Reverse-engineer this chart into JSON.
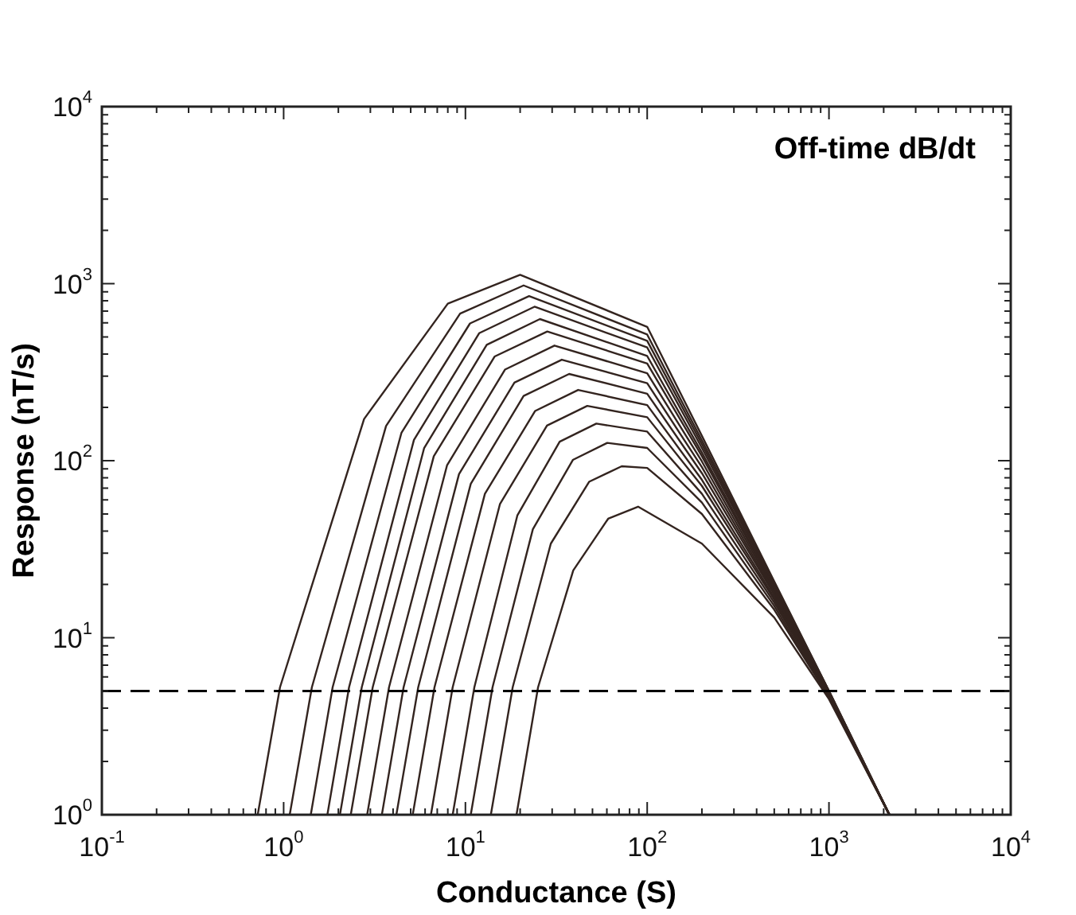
{
  "chart_data": {
    "type": "line",
    "xlabel": "Conductance (S)",
    "ylabel": "Response (nT/s)",
    "annotations": [
      "Off-time dB/dt"
    ],
    "log": "xy",
    "grid": false,
    "legend": false,
    "marker": "none",
    "line_style": "solid",
    "xlim": [
      0.1,
      10000
    ],
    "ylim": [
      1,
      10000
    ],
    "xticks": [
      {
        "value": 0.1,
        "label": "10$^{-1}$"
      },
      {
        "value": 0.2,
        "label": null
      },
      {
        "value": 0.3,
        "label": null
      },
      {
        "value": 0.4,
        "label": null
      },
      {
        "value": 0.5,
        "label": null
      },
      {
        "value": 0.6,
        "label": null
      },
      {
        "value": 0.7,
        "label": null
      },
      {
        "value": 0.8,
        "label": null
      },
      {
        "value": 0.9,
        "label": null
      },
      {
        "value": 1,
        "label": "10$^{0}$"
      },
      {
        "value": 2,
        "label": null
      },
      {
        "value": 3,
        "label": null
      },
      {
        "value": 4,
        "label": null
      },
      {
        "value": 5,
        "label": null
      },
      {
        "value": 6,
        "label": null
      },
      {
        "value": 7,
        "label": null
      },
      {
        "value": 8,
        "label": null
      },
      {
        "value": 9,
        "label": null
      },
      {
        "value": 10,
        "label": "10$^{1}$"
      },
      {
        "value": 20,
        "label": null
      },
      {
        "value": 30,
        "label": null
      },
      {
        "value": 40,
        "label": null
      },
      {
        "value": 50,
        "label": null
      },
      {
        "value": 60,
        "label": null
      },
      {
        "value": 70,
        "label": null
      },
      {
        "value": 80,
        "label": null
      },
      {
        "value": 90,
        "label": null
      },
      {
        "value": 100,
        "label": "10$^{2}$"
      },
      {
        "value": 200,
        "label": null
      },
      {
        "value": 300,
        "label": null
      },
      {
        "value": 400,
        "label": null
      },
      {
        "value": 500,
        "label": null
      },
      {
        "value": 600,
        "label": null
      },
      {
        "value": 700,
        "label": null
      },
      {
        "value": 800,
        "label": null
      },
      {
        "value": 900,
        "label": null
      },
      {
        "value": 1000,
        "label": "10$^{3}$"
      },
      {
        "value": 2000,
        "label": null
      },
      {
        "value": 3000,
        "label": null
      },
      {
        "value": 4000,
        "label": null
      },
      {
        "value": 5000,
        "label": null
      },
      {
        "value": 6000,
        "label": null
      },
      {
        "value": 7000,
        "label": null
      },
      {
        "value": 8000,
        "label": null
      },
      {
        "value": 9000,
        "label": null
      },
      {
        "value": 10000,
        "label": "10$^{4}$"
      }
    ],
    "yticks": [
      {
        "value": 1,
        "label": "10$^{0}$"
      },
      {
        "value": 2,
        "label": null
      },
      {
        "value": 3,
        "label": null
      },
      {
        "value": 4,
        "label": null
      },
      {
        "value": 5,
        "label": null
      },
      {
        "value": 6,
        "label": null
      },
      {
        "value": 7,
        "label": null
      },
      {
        "value": 8,
        "label": null
      },
      {
        "value": 9,
        "label": null
      },
      {
        "value": 10,
        "label": "10$^{1}$"
      },
      {
        "value": 20,
        "label": null
      },
      {
        "value": 30,
        "label": null
      },
      {
        "value": 40,
        "label": null
      },
      {
        "value": 50,
        "label": null
      },
      {
        "value": 60,
        "label": null
      },
      {
        "value": 70,
        "label": null
      },
      {
        "value": 80,
        "label": null
      },
      {
        "value": 90,
        "label": null
      },
      {
        "value": 100,
        "label": "10$^{2}$"
      },
      {
        "value": 200,
        "label": null
      },
      {
        "value": 300,
        "label": null
      },
      {
        "value": 400,
        "label": null
      },
      {
        "value": 500,
        "label": null
      },
      {
        "value": 600,
        "label": null
      },
      {
        "value": 700,
        "label": null
      },
      {
        "value": 800,
        "label": null
      },
      {
        "value": 900,
        "label": null
      },
      {
        "value": 1000,
        "label": "10$^{3}$"
      },
      {
        "value": 2000,
        "label": null
      },
      {
        "value": 3000,
        "label": null
      },
      {
        "value": 4000,
        "label": null
      },
      {
        "value": 5000,
        "label": null
      },
      {
        "value": 6000,
        "label": null
      },
      {
        "value": 7000,
        "label": null
      },
      {
        "value": 8000,
        "label": null
      },
      {
        "value": 9000,
        "label": null
      },
      {
        "value": 10000,
        "label": "10$^{4}$"
      }
    ],
    "ref_lines": [
      {
        "axis": "y",
        "value": 5,
        "color": "#000000",
        "line_style": "dashed"
      }
    ],
    "series": [
      {
        "color": "#33241f",
        "x": [
          0.72,
          0.955,
          2.77,
          8.0,
          20.0,
          100,
          200,
          500,
          1000,
          2150
        ],
        "values": [
          1,
          5.25,
          172,
          771,
          1122,
          570,
          138,
          20.8,
          5.0,
          1
        ]
      },
      {
        "color": "#33241f",
        "x": [
          1.08,
          1.43,
          3.66,
          9.35,
          20.9,
          100,
          200,
          500,
          1000,
          2150
        ],
        "values": [
          1,
          5.25,
          157,
          678,
          977,
          516,
          130,
          20.4,
          5.0,
          1
        ]
      },
      {
        "color": "#33241f",
        "x": [
          1.41,
          1.86,
          4.45,
          10.6,
          22.4,
          100,
          200,
          500,
          1000,
          2150
        ],
        "values": [
          1,
          5.25,
          144,
          596,
          851,
          475,
          124,
          20.0,
          5.0,
          1
        ]
      },
      {
        "color": "#33241f",
        "x": [
          1.74,
          2.29,
          5.21,
          11.9,
          24.0,
          100,
          200,
          500,
          1000,
          2150
        ],
        "values": [
          1,
          5.25,
          131,
          525,
          741,
          436,
          118,
          19.7,
          4.9,
          1
        ]
      },
      {
        "color": "#33241f",
        "x": [
          2.04,
          2.69,
          5.93,
          13.1,
          25.7,
          100,
          200,
          500,
          1000,
          2150
        ],
        "values": [
          1,
          5.25,
          118,
          451,
          631,
          390,
          111,
          19.2,
          4.9,
          1
        ]
      },
      {
        "color": "#33241f",
        "x": [
          2.34,
          3.09,
          6.7,
          14.5,
          28.2,
          100,
          200,
          500,
          1000,
          2150
        ],
        "values": [
          1,
          5.25,
          106,
          388,
          537,
          354,
          106,
          18.9,
          4.9,
          1
        ]
      },
      {
        "color": "#33241f",
        "x": [
          2.88,
          3.8,
          7.92,
          16.5,
          30.9,
          100,
          200,
          500,
          1000,
          2150
        ],
        "values": [
          1,
          5.25,
          94,
          327,
          447,
          312,
          99,
          18.4,
          4.9,
          1
        ]
      },
      {
        "color": "#33241f",
        "x": [
          3.47,
          4.57,
          9.22,
          18.6,
          33.9,
          100,
          200,
          500,
          1000,
          2150
        ],
        "values": [
          1,
          5.25,
          84,
          276,
          372,
          274,
          92,
          17.9,
          4.8,
          1
        ]
      },
      {
        "color": "#33241f",
        "x": [
          4.17,
          5.5,
          10.7,
          20.9,
          37.2,
          100,
          200,
          500,
          1000,
          2150
        ],
        "values": [
          1,
          5.25,
          74,
          232,
          309,
          239,
          85,
          17.5,
          4.8,
          1
        ]
      },
      {
        "color": "#33241f",
        "x": [
          5.13,
          6.76,
          12.8,
          24.2,
          41.7,
          100,
          200,
          500,
          1000,
          2150
        ],
        "values": [
          1,
          5.25,
          65,
          191,
          251,
          206,
          78,
          16.9,
          4.8,
          1
        ]
      },
      {
        "color": "#33241f",
        "x": [
          6.46,
          8.51,
          15.5,
          28.1,
          46.8,
          100,
          200,
          500,
          1000,
          2150
        ],
        "values": [
          1,
          5.25,
          57,
          158,
          204,
          176,
          72,
          16.4,
          4.7,
          1
        ]
      },
      {
        "color": "#33241f",
        "x": [
          8.51,
          11.2,
          19.3,
          33.0,
          52.5,
          100,
          200,
          500,
          1000,
          2150
        ],
        "values": [
          1,
          5.25,
          49,
          128,
          162,
          146,
          65,
          15.8,
          4.7,
          1
        ]
      },
      {
        "color": "#33241f",
        "x": [
          10.7,
          14.1,
          23.5,
          39.0,
          60.3,
          100,
          200,
          500,
          1000,
          2150
        ],
        "values": [
          1,
          5.25,
          41,
          101,
          126,
          118,
          58,
          15.1,
          4.6,
          1
        ]
      },
      {
        "color": "#33241f",
        "x": [
          13.8,
          18.2,
          29.5,
          47.9,
          72.4,
          100,
          200,
          500,
          1000,
          2150
        ],
        "values": [
          1,
          5.25,
          34,
          76,
          93,
          91,
          50,
          14.4,
          4.6,
          1
        ]
      },
      {
        "color": "#33241f",
        "x": [
          19.1,
          25.1,
          39.2,
          61.0,
          89.1,
          200,
          500,
          1000,
          2150
        ],
        "values": [
          1,
          5.25,
          24,
          47,
          55,
          34,
          13.0,
          4.5,
          1
        ]
      }
    ]
  }
}
